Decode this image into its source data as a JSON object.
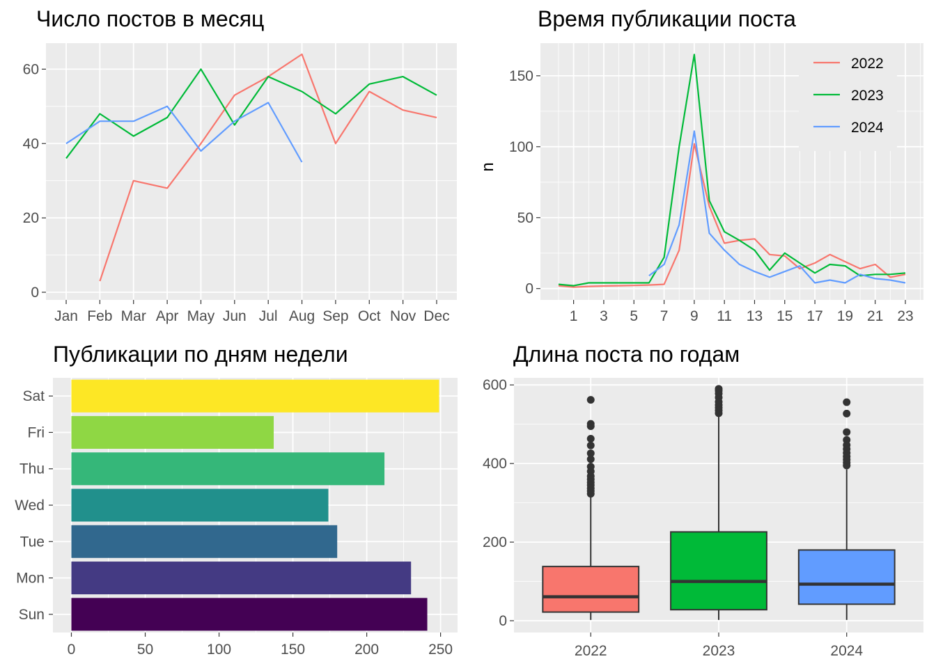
{
  "chart_data": [
    {
      "type": "line",
      "title": "Число постов в месяц",
      "xlabel": "",
      "ylabel": "",
      "categories": [
        "Jan",
        "Feb",
        "Mar",
        "Apr",
        "May",
        "Jun",
        "Jul",
        "Aug",
        "Sep",
        "Oct",
        "Nov",
        "Dec"
      ],
      "ylim": [
        0,
        67
      ],
      "yticks": [
        "0",
        "20",
        "40",
        "60"
      ],
      "series": [
        {
          "color": "#F8766D",
          "values": [
            null,
            3,
            30,
            28,
            40,
            53,
            58,
            64,
            40,
            54,
            49,
            47
          ]
        },
        {
          "color": "#00BA38",
          "values": [
            36,
            48,
            42,
            47,
            60,
            45,
            58,
            54,
            48,
            56,
            58,
            53
          ]
        },
        {
          "color": "#619CFF",
          "values": [
            40,
            46,
            46,
            50,
            38,
            46,
            51,
            35,
            null,
            null,
            null,
            null
          ]
        }
      ],
      "grid": true,
      "legend": "none"
    },
    {
      "type": "line",
      "title": "Время публикации поста",
      "xlabel": "",
      "ylabel": "n",
      "x": [
        0,
        1,
        2,
        3,
        4,
        5,
        6,
        7,
        8,
        9,
        10,
        11,
        12,
        13,
        14,
        15,
        16,
        17,
        18,
        19,
        20,
        21,
        22,
        23
      ],
      "xticks": [
        "1",
        "3",
        "5",
        "7",
        "9",
        "11",
        "13",
        "15",
        "17",
        "19",
        "21",
        "23"
      ],
      "xlim": [
        -1.2,
        24.2
      ],
      "ylim": [
        -8,
        173
      ],
      "yticks": [
        "0",
        "50",
        "100",
        "150"
      ],
      "series": [
        {
          "name": "2022",
          "color": "#F8766D",
          "values": [
            2,
            1,
            1.5,
            1.8,
            2,
            2.2,
            2.5,
            3,
            27,
            102,
            58,
            32,
            34,
            35,
            24,
            23,
            14,
            18,
            24,
            19,
            14,
            17,
            8,
            10
          ]
        },
        {
          "name": "2023",
          "color": "#00BA38",
          "values": [
            3,
            2,
            4,
            4,
            4,
            4,
            4,
            22,
            100,
            165,
            62,
            40,
            34,
            27,
            13,
            25,
            18,
            11,
            17,
            16,
            9,
            10,
            10,
            11
          ]
        },
        {
          "name": "2024",
          "color": "#619CFF",
          "values": [
            null,
            null,
            null,
            null,
            null,
            null,
            9,
            17,
            45,
            111,
            39,
            27,
            17,
            12,
            8,
            12,
            16,
            4,
            6,
            4,
            10,
            7,
            6,
            4
          ]
        }
      ],
      "grid": true,
      "legend": "top-right"
    },
    {
      "type": "bar",
      "orientation": "horizontal",
      "title": "Публикации по дням недели",
      "xlabel": "",
      "ylabel": "",
      "categories": [
        "Sun",
        "Mon",
        "Tue",
        "Wed",
        "Thu",
        "Fri",
        "Sat"
      ],
      "values": [
        241,
        230,
        180,
        174,
        212,
        137,
        249
      ],
      "colors": [
        "#440154",
        "#443A83",
        "#31688E",
        "#21908C",
        "#35B779",
        "#8FD744",
        "#FDE725"
      ],
      "xlim": [
        -12.5,
        261.5
      ],
      "xticks": [
        "0",
        "50",
        "100",
        "150",
        "200",
        "250"
      ],
      "grid": true,
      "legend": "none"
    },
    {
      "type": "box",
      "title": "Длина поста по годам",
      "xlabel": "",
      "ylabel": "",
      "categories": [
        "2022",
        "2023",
        "2024"
      ],
      "ylim": [
        -30,
        618
      ],
      "yticks": [
        "0",
        "200",
        "400",
        "600"
      ],
      "boxes": [
        {
          "color": "#F8766D",
          "min": 2,
          "q1": 22,
          "median": 61,
          "q3": 138,
          "max": 318,
          "outliers": [
            562,
            501,
            495,
            463,
            446,
            426,
            411,
            392,
            380,
            368,
            360,
            352,
            345,
            337,
            330,
            323
          ]
        },
        {
          "color": "#00BA38",
          "min": 2,
          "q1": 28,
          "median": 100,
          "q3": 226,
          "max": 520,
          "outliers": [
            590,
            585,
            578,
            568,
            557,
            549,
            542,
            535,
            528
          ]
        },
        {
          "color": "#619CFF",
          "min": 2,
          "q1": 42,
          "median": 93,
          "q3": 180,
          "max": 385,
          "outliers": [
            556,
            527,
            480,
            460,
            447,
            437,
            427,
            418,
            410,
            402,
            395
          ]
        }
      ],
      "grid": true,
      "legend": "none"
    }
  ]
}
